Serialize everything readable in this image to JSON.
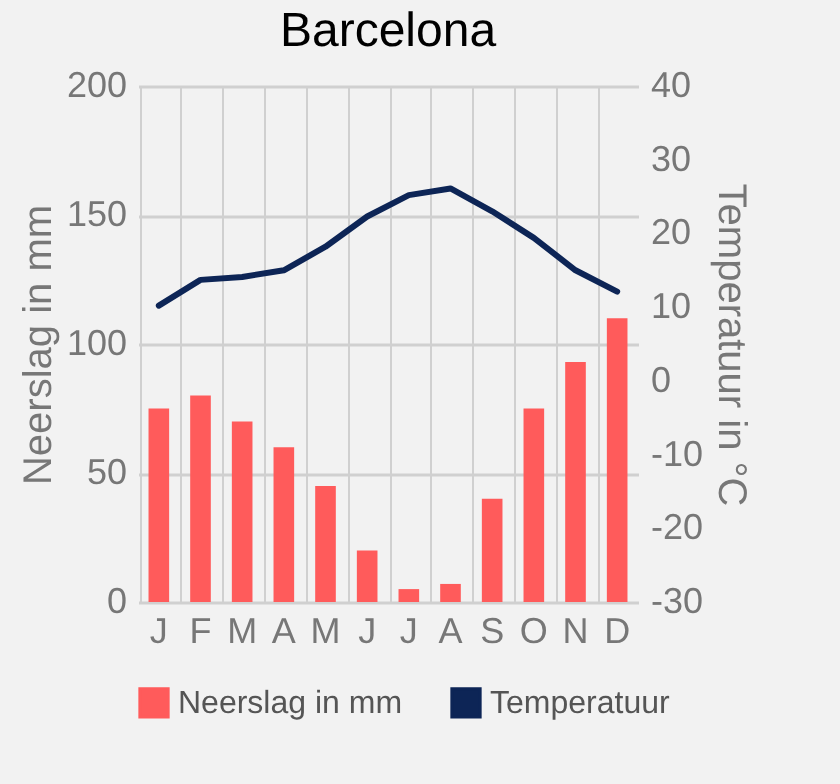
{
  "chart_data": {
    "type": "bar",
    "title": "Barcelona",
    "ylabel": "Neerslag in mm",
    "y2label": "Temperatuur in °C",
    "categories": [
      "J",
      "F",
      "M",
      "A",
      "M",
      "J",
      "J",
      "A",
      "S",
      "O",
      "N",
      "D"
    ],
    "series": [
      {
        "name": "Neerslag in mm",
        "color": "#ff5b5b",
        "values": [
          75,
          80,
          70,
          60,
          45,
          20,
          5,
          7,
          40,
          75,
          93,
          110
        ]
      },
      {
        "name": "Temperatuur",
        "type": "line",
        "axis": "y2",
        "color": "#0d2556",
        "values": [
          10.2,
          13.7,
          14.1,
          15,
          18.2,
          22.3,
          25.2,
          26.1,
          23,
          19.4,
          15,
          12.1
        ]
      }
    ],
    "ylim": [
      0,
      200
    ],
    "yticks": [
      0,
      50,
      100,
      150,
      200
    ],
    "y2lim": [
      -30,
      40
    ],
    "y2ticks": [
      -30,
      -20,
      -10,
      0,
      10,
      20,
      30,
      40
    ],
    "grid": true,
    "legend": "bottom"
  }
}
